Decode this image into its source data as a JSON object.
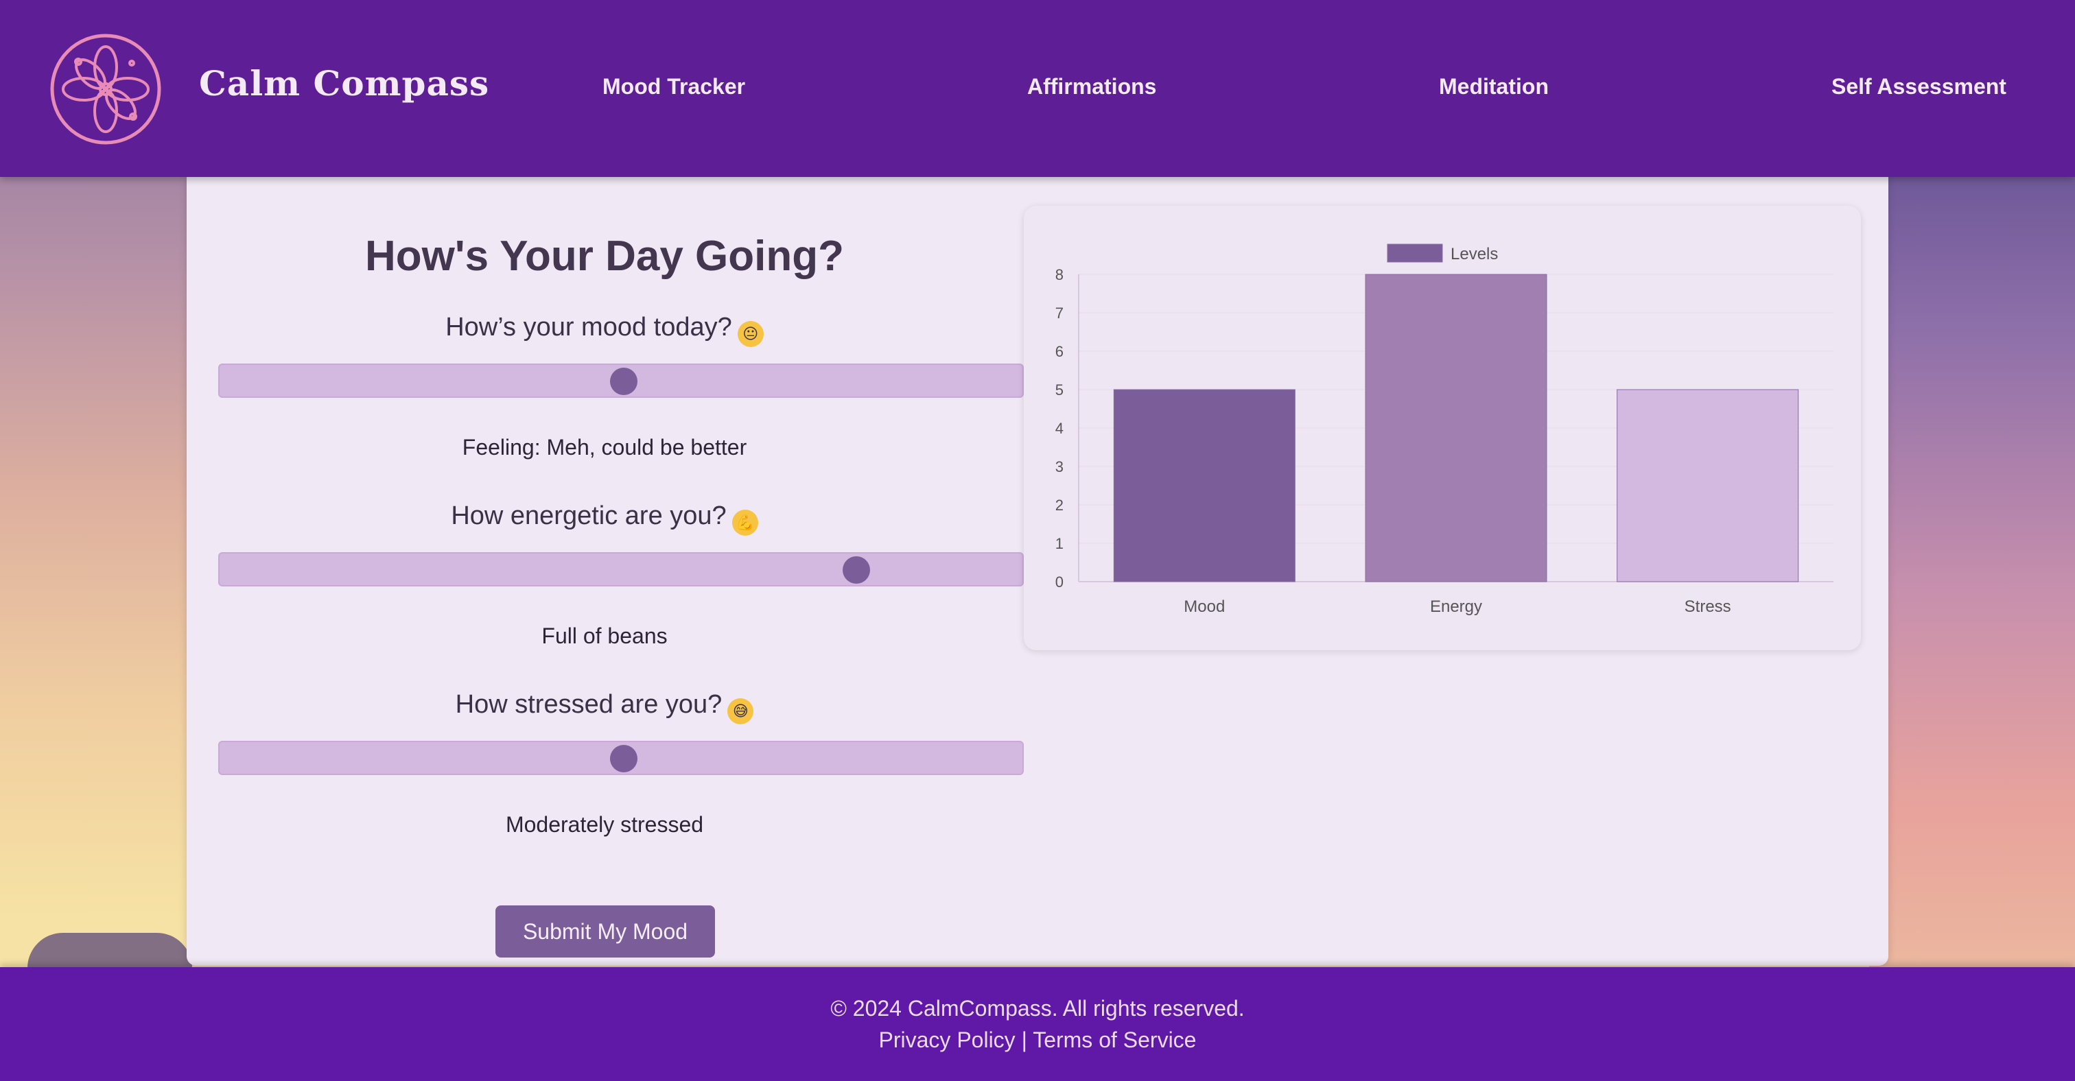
{
  "brand": {
    "name": "Calm Compass"
  },
  "nav": {
    "items": [
      {
        "label": "Mood Tracker"
      },
      {
        "label": "Affirmations"
      },
      {
        "label": "Meditation"
      },
      {
        "label": "Self Assessment"
      }
    ]
  },
  "main": {
    "heading": "How's Your Day Going?",
    "questions": [
      {
        "label": "How’s your mood today?",
        "emoji": "😐",
        "value_fraction": 0.5,
        "status": "Feeling: Meh, could be better"
      },
      {
        "label": "How energetic are you?",
        "emoji": "💪",
        "value_fraction": 0.8,
        "status": "Full of beans"
      },
      {
        "label": "How stressed are you?",
        "emoji": "😅",
        "value_fraction": 0.5,
        "status": "Moderately stressed"
      }
    ],
    "submit_label": "Submit My Mood"
  },
  "chart_data": {
    "type": "bar",
    "categories": [
      "Mood",
      "Energy",
      "Stress"
    ],
    "series": [
      {
        "name": "Levels",
        "values": [
          5,
          8,
          5
        ]
      }
    ],
    "bar_colors": [
      "#7b5d99",
      "#a17fb0",
      "#d3b8df"
    ],
    "legend": "top-center",
    "ylim": [
      0,
      8
    ],
    "yticks": [
      "0",
      "1",
      "2",
      "3",
      "4",
      "5",
      "6",
      "7",
      "8"
    ],
    "grid": true
  },
  "footer": {
    "copyright": "© 2024 CalmCompass. All rights reserved.",
    "privacy": "Privacy Policy",
    "separator": "|",
    "terms": "Terms of Service"
  },
  "colors": {
    "header_bg": "#5e1f96",
    "footer_bg": "#6018a6",
    "accent": "#7b5d99",
    "logo_pink": "#e88bb6"
  }
}
